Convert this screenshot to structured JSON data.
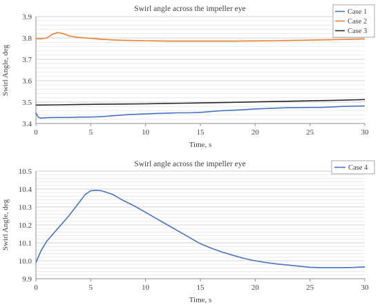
{
  "chart_data": [
    {
      "type": "line",
      "title": "Swirl angle across the impeller eye",
      "xlabel": "Time, s",
      "ylabel": "Swirl Angle, deg",
      "xlim": [
        0,
        30
      ],
      "ylim": [
        3.4,
        3.9
      ],
      "xticks": [
        "0",
        "5",
        "10",
        "15",
        "20",
        "25",
        "30"
      ],
      "yticks": [
        "3.4",
        "3.5",
        "3.6",
        "3.7",
        "3.8",
        "3.9"
      ],
      "grid": true,
      "legend": "top-right",
      "series": [
        {
          "name": "Case 1",
          "color": "#4472C4",
          "x": [
            0,
            0.2,
            0.4,
            1,
            2,
            3,
            4,
            5,
            6,
            7,
            8,
            9,
            10,
            11,
            12,
            13,
            14,
            15,
            16,
            17,
            18,
            19,
            20,
            21,
            22,
            23,
            24,
            25,
            26,
            27,
            28,
            29,
            30
          ],
          "y": [
            3.45,
            3.43,
            3.425,
            3.427,
            3.428,
            3.428,
            3.43,
            3.43,
            3.432,
            3.436,
            3.44,
            3.443,
            3.445,
            3.447,
            3.448,
            3.45,
            3.45,
            3.452,
            3.456,
            3.46,
            3.462,
            3.465,
            3.468,
            3.47,
            3.472,
            3.474,
            3.474,
            3.475,
            3.475,
            3.477,
            3.48,
            3.481,
            3.482
          ]
        },
        {
          "name": "Case 2",
          "color": "#ED7D31",
          "x": [
            0,
            0.5,
            1,
            1.5,
            2,
            2.5,
            3,
            3.5,
            4,
            5,
            6,
            7,
            8,
            9,
            10,
            12,
            14,
            16,
            18,
            20,
            22,
            24,
            26,
            28,
            30
          ],
          "y": [
            3.797,
            3.796,
            3.8,
            3.817,
            3.825,
            3.82,
            3.81,
            3.805,
            3.802,
            3.798,
            3.794,
            3.791,
            3.789,
            3.788,
            3.787,
            3.785,
            3.785,
            3.785,
            3.785,
            3.786,
            3.787,
            3.789,
            3.791,
            3.793,
            3.795
          ]
        },
        {
          "name": "Case 3",
          "color": "#262626",
          "x": [
            0,
            2,
            4,
            6,
            8,
            10,
            12,
            14,
            16,
            18,
            20,
            22,
            24,
            26,
            28,
            30
          ],
          "y": [
            3.486,
            3.487,
            3.489,
            3.49,
            3.491,
            3.492,
            3.494,
            3.495,
            3.497,
            3.499,
            3.501,
            3.503,
            3.505,
            3.507,
            3.509,
            3.512
          ]
        }
      ]
    },
    {
      "type": "line",
      "title": "Swirl angle across the impeller eye",
      "xlabel": "Time, s",
      "ylabel": "Swirl Angle, deg",
      "xlim": [
        0,
        30
      ],
      "ylim": [
        9.9,
        10.5
      ],
      "xticks": [
        "0",
        "5",
        "10",
        "15",
        "20",
        "25",
        "30"
      ],
      "yticks": [
        "9.9",
        "10.0",
        "10.1",
        "10.2",
        "10.3",
        "10.4",
        "10.5"
      ],
      "grid": true,
      "legend": "top-right",
      "series": [
        {
          "name": "Case 4",
          "color": "#4472C4",
          "x": [
            0,
            0.5,
            1,
            2,
            3,
            4,
            4.5,
            5,
            5.5,
            6,
            7,
            8,
            9,
            10,
            11,
            12,
            13,
            14,
            15,
            16,
            17,
            18,
            19,
            20,
            21,
            22,
            23,
            24,
            25,
            26,
            27,
            28,
            29,
            30
          ],
          "y": [
            9.99,
            10.06,
            10.11,
            10.18,
            10.25,
            10.33,
            10.37,
            10.39,
            10.393,
            10.39,
            10.37,
            10.335,
            10.305,
            10.27,
            10.235,
            10.2,
            10.165,
            10.13,
            10.095,
            10.07,
            10.048,
            10.03,
            10.013,
            10.0,
            9.99,
            9.982,
            9.976,
            9.97,
            9.964,
            9.962,
            9.962,
            9.962,
            9.963,
            9.966
          ]
        }
      ]
    }
  ]
}
